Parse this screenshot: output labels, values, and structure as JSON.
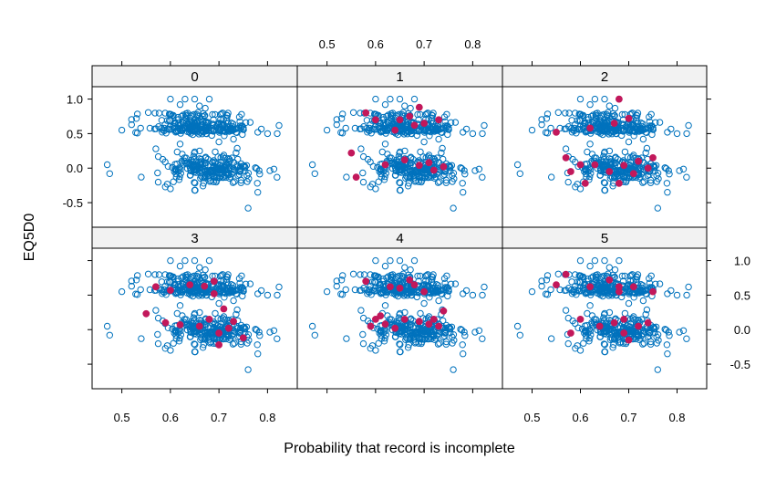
{
  "chart_data": {
    "type": "scatter",
    "layout": "trellis-3x2",
    "xlabel": "Probability that record is incomplete",
    "ylabel": "EQ5D0",
    "xlim": [
      0.45,
      0.85
    ],
    "ylim": [
      -0.75,
      1.1
    ],
    "x_ticks": [
      "0.5",
      "0.6",
      "0.7",
      "0.8"
    ],
    "y_ticks": [
      "-0.5",
      "0.0",
      "0.5",
      "1.0"
    ],
    "observed_color": "#0072BD",
    "imputed_color": "#C2185B",
    "panels": [
      {
        "label": "0",
        "imputed": []
      },
      {
        "label": "1",
        "imputed": [
          [
            0.55,
            0.22
          ],
          [
            0.56,
            -0.13
          ],
          [
            0.58,
            0.8
          ],
          [
            0.6,
            0.7
          ],
          [
            0.62,
            0.05
          ],
          [
            0.65,
            0.7
          ],
          [
            0.67,
            0.75
          ],
          [
            0.68,
            0.62
          ],
          [
            0.69,
            0.88
          ],
          [
            0.69,
            0.04
          ],
          [
            0.7,
            0.65
          ],
          [
            0.71,
            0.08
          ],
          [
            0.72,
            -0.03
          ],
          [
            0.73,
            0.7
          ],
          [
            0.74,
            0.02
          ],
          [
            0.66,
            0.12
          ],
          [
            0.64,
            0.55
          ]
        ]
      },
      {
        "label": "2",
        "imputed": [
          [
            0.57,
            0.15
          ],
          [
            0.58,
            -0.05
          ],
          [
            0.6,
            0.05
          ],
          [
            0.61,
            -0.22
          ],
          [
            0.62,
            0.58
          ],
          [
            0.63,
            0.05
          ],
          [
            0.66,
            -0.05
          ],
          [
            0.67,
            0.65
          ],
          [
            0.68,
            1.0
          ],
          [
            0.69,
            0.04
          ],
          [
            0.7,
            0.72
          ],
          [
            0.71,
            -0.08
          ],
          [
            0.72,
            0.1
          ],
          [
            0.74,
            0.0
          ],
          [
            0.75,
            0.15
          ],
          [
            0.68,
            -0.22
          ],
          [
            0.55,
            0.52
          ]
        ]
      },
      {
        "label": "3",
        "imputed": [
          [
            0.55,
            0.23
          ],
          [
            0.57,
            0.62
          ],
          [
            0.59,
            0.1
          ],
          [
            0.6,
            0.57
          ],
          [
            0.62,
            0.07
          ],
          [
            0.64,
            0.65
          ],
          [
            0.66,
            0.05
          ],
          [
            0.67,
            0.63
          ],
          [
            0.68,
            0.15
          ],
          [
            0.69,
            0.52
          ],
          [
            0.7,
            -0.05
          ],
          [
            0.71,
            0.3
          ],
          [
            0.72,
            0.02
          ],
          [
            0.73,
            0.12
          ],
          [
            0.75,
            -0.12
          ],
          [
            0.7,
            -0.22
          ],
          [
            0.69,
            0.7
          ]
        ]
      },
      {
        "label": "4",
        "imputed": [
          [
            0.58,
            0.7
          ],
          [
            0.59,
            0.05
          ],
          [
            0.6,
            0.15
          ],
          [
            0.61,
            0.2
          ],
          [
            0.62,
            0.08
          ],
          [
            0.64,
            0.02
          ],
          [
            0.65,
            0.6
          ],
          [
            0.67,
            0.72
          ],
          [
            0.68,
            0.65
          ],
          [
            0.69,
            0.12
          ],
          [
            0.7,
            0.55
          ],
          [
            0.71,
            0.08
          ],
          [
            0.72,
            0.15
          ],
          [
            0.73,
            0.05
          ],
          [
            0.74,
            0.27
          ],
          [
            0.63,
            0.62
          ],
          [
            0.66,
            0.15
          ]
        ]
      },
      {
        "label": "5",
        "imputed": [
          [
            0.55,
            0.65
          ],
          [
            0.57,
            0.8
          ],
          [
            0.58,
            -0.05
          ],
          [
            0.6,
            0.15
          ],
          [
            0.62,
            0.62
          ],
          [
            0.64,
            0.05
          ],
          [
            0.66,
            0.72
          ],
          [
            0.67,
            0.1
          ],
          [
            0.68,
            0.55
          ],
          [
            0.69,
            0.15
          ],
          [
            0.7,
            -0.15
          ],
          [
            0.71,
            0.62
          ],
          [
            0.72,
            0.05
          ],
          [
            0.74,
            0.1
          ],
          [
            0.75,
            0.55
          ],
          [
            0.69,
            -0.05
          ],
          [
            0.68,
            0.62
          ]
        ]
      }
    ]
  }
}
